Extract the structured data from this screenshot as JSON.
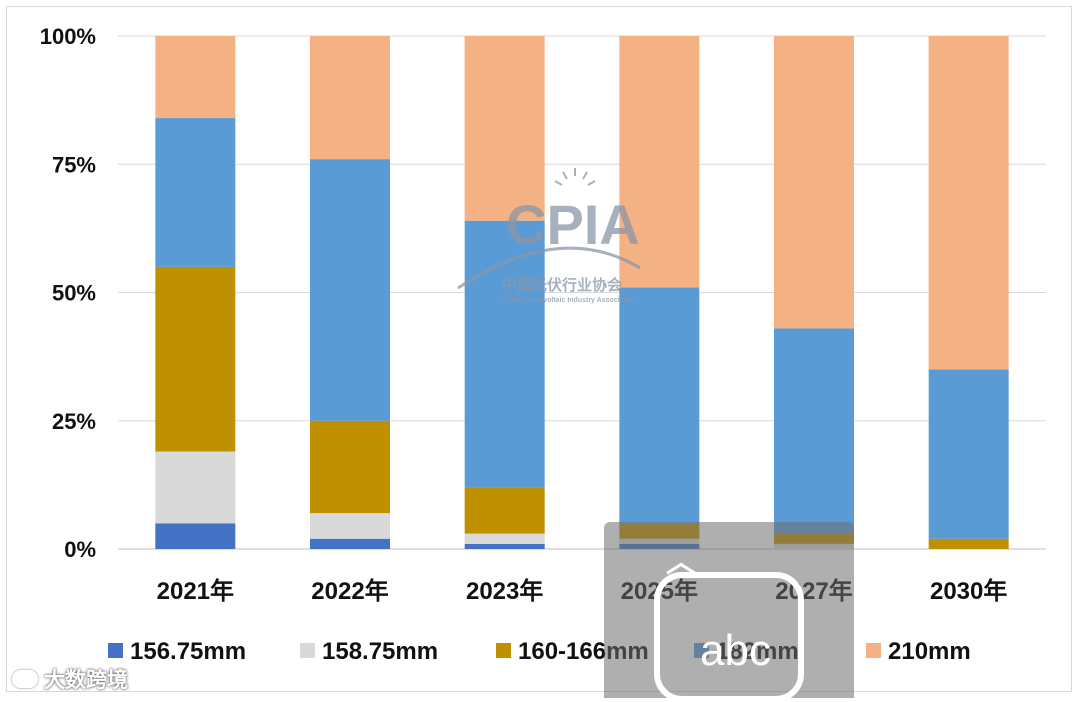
{
  "chart_data": {
    "type": "bar",
    "stacked": true,
    "percent": true,
    "categories": [
      "2021年",
      "2022年",
      "2023年",
      "2025年",
      "2027年",
      "2030年"
    ],
    "y_ticks": [
      "0%",
      "25%",
      "50%",
      "75%",
      "100%"
    ],
    "ylim": [
      0,
      100
    ],
    "grid": true,
    "legend_position": "bottom",
    "series": [
      {
        "name": "156.75mm",
        "color": "#4472c4",
        "values": [
          5,
          2,
          1,
          1,
          0,
          0
        ]
      },
      {
        "name": "158.75mm",
        "color": "#d9d9d9",
        "values": [
          14,
          5,
          2,
          1,
          1,
          0
        ]
      },
      {
        "name": "160-166mm",
        "color": "#bf9000",
        "values": [
          36,
          18,
          9,
          3,
          2,
          2
        ]
      },
      {
        "name": "182mm",
        "color": "#5b9bd5",
        "values": [
          29,
          51,
          52,
          46,
          40,
          33
        ]
      },
      {
        "name": "210mm",
        "color": "#f4b183",
        "values": [
          16,
          24,
          36,
          49,
          57,
          65
        ]
      }
    ]
  },
  "watermark": {
    "logo": "CPIA",
    "org_cn": "中国光伏行业协会",
    "org_en": "China Photovoltaic Industry Association"
  },
  "overlay": {
    "label": "abc",
    "icon": "chevron-up-icon"
  },
  "brand": {
    "text": "大数跨境",
    "icon": "brand-logo-icon"
  }
}
